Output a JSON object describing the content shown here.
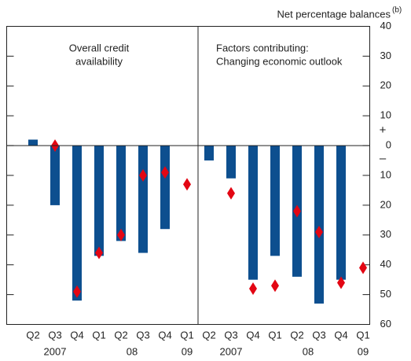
{
  "axis": {
    "label": "Net percentage balances",
    "label_sup": "(b)",
    "plus": "+",
    "minus": "–",
    "ylim": [
      -60,
      40
    ],
    "yticks": [
      {
        "value": -60,
        "label": "60"
      },
      {
        "value": -50,
        "label": "50"
      },
      {
        "value": -40,
        "label": "40"
      },
      {
        "value": -30,
        "label": "30"
      },
      {
        "value": -20,
        "label": "20"
      },
      {
        "value": -10,
        "label": "10"
      },
      0,
      10,
      20,
      30,
      40
    ]
  },
  "chart_data": [
    {
      "type": "bar",
      "title": [
        "Overall credit",
        "availability"
      ],
      "title_align": "center",
      "categories": [
        "Q2",
        "Q3",
        "Q4",
        "Q1",
        "Q2",
        "Q3",
        "Q4",
        "Q1"
      ],
      "groups": [
        {
          "label": "2007",
          "from": 0,
          "to": 2
        },
        {
          "label": "08",
          "from": 3,
          "to": 6
        },
        {
          "label": "09",
          "from": 7,
          "to": 7
        }
      ],
      "series": [
        {
          "type": "bar",
          "color": "#0d4f8f",
          "values": [
            2,
            -20,
            -52,
            -37,
            -32,
            -36,
            -28,
            null
          ]
        },
        {
          "type": "scatter",
          "marker": "diamond",
          "color": "#e30613",
          "values": [
            null,
            0,
            -49,
            -36,
            -30,
            -10,
            -9,
            -13
          ]
        }
      ]
    },
    {
      "type": "bar",
      "title": [
        "Factors contributing:",
        "Changing economic outlook"
      ],
      "title_align": "left",
      "categories": [
        "Q2",
        "Q3",
        "Q4",
        "Q1",
        "Q2",
        "Q3",
        "Q4",
        "Q1"
      ],
      "groups": [
        {
          "label": "2007",
          "from": 0,
          "to": 2
        },
        {
          "label": "08",
          "from": 3,
          "to": 6
        },
        {
          "label": "09",
          "from": 7,
          "to": 7
        }
      ],
      "series": [
        {
          "type": "bar",
          "color": "#0d4f8f",
          "values": [
            -5,
            -11,
            -45,
            -37,
            -44,
            -53,
            -45,
            null
          ]
        },
        {
          "type": "scatter",
          "marker": "diamond",
          "color": "#e30613",
          "values": [
            null,
            -16,
            -48,
            -47,
            -22,
            -29,
            -46,
            -41
          ]
        }
      ]
    }
  ]
}
